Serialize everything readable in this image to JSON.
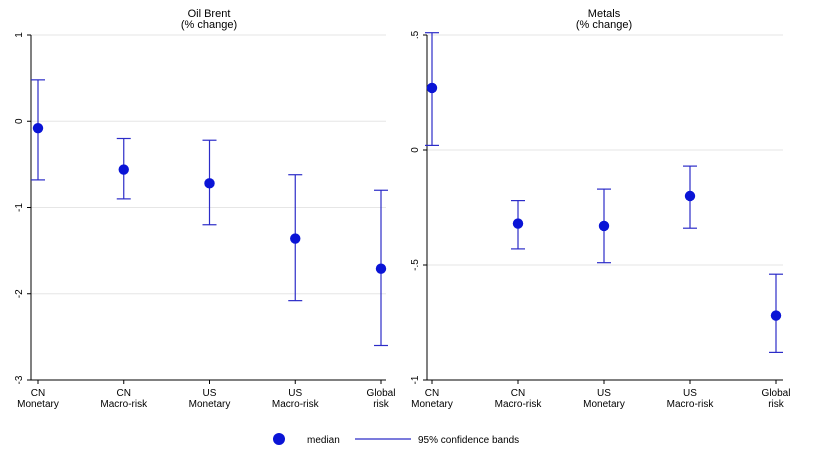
{
  "colors": {
    "marker": "#0a14d6",
    "ci": "#2c2cc8",
    "grid": "#e6e6e6"
  },
  "chart_data": [
    {
      "type": "scatter",
      "title": "Oil Brent",
      "subtitle": "(% change)",
      "categories": [
        [
          "CN",
          "Monetary"
        ],
        [
          "CN",
          "Macro-risk"
        ],
        [
          "US",
          "Monetary"
        ],
        [
          "US",
          "Macro-risk"
        ],
        [
          "Global",
          "risk"
        ]
      ],
      "median": [
        -0.08,
        -0.56,
        -0.72,
        -1.36,
        -1.71
      ],
      "ci_low": [
        -0.68,
        -0.9,
        -1.2,
        -2.08,
        -2.6
      ],
      "ci_high": [
        0.48,
        -0.2,
        -0.22,
        -0.62,
        -0.8
      ],
      "ylim": [
        -3,
        1
      ],
      "yticks": [
        1,
        0,
        -1,
        -2,
        -3
      ],
      "ytick_labels": [
        "1",
        "0",
        "-1",
        "-2",
        "-3"
      ],
      "grid": true
    },
    {
      "type": "scatter",
      "title": "Metals",
      "subtitle": "(% change)",
      "categories": [
        [
          "CN",
          "Monetary"
        ],
        [
          "CN",
          "Macro-risk"
        ],
        [
          "US",
          "Monetary"
        ],
        [
          "US",
          "Macro-risk"
        ],
        [
          "Global",
          "risk"
        ]
      ],
      "median": [
        0.27,
        -0.32,
        -0.33,
        -0.2,
        -0.72
      ],
      "ci_low": [
        0.02,
        -0.43,
        -0.49,
        -0.34,
        -0.88
      ],
      "ci_high": [
        0.51,
        -0.22,
        -0.17,
        -0.07,
        -0.54
      ],
      "ylim": [
        -1,
        0.5
      ],
      "yticks": [
        0.5,
        0,
        -0.5,
        -1
      ],
      "ytick_labels": [
        ".5",
        "0",
        "-.5",
        "-1"
      ],
      "grid": true
    }
  ],
  "legend": {
    "position": "bottom",
    "entries": [
      {
        "label": "median",
        "kind": "marker"
      },
      {
        "label": "95% confidence bands",
        "kind": "line"
      }
    ]
  }
}
